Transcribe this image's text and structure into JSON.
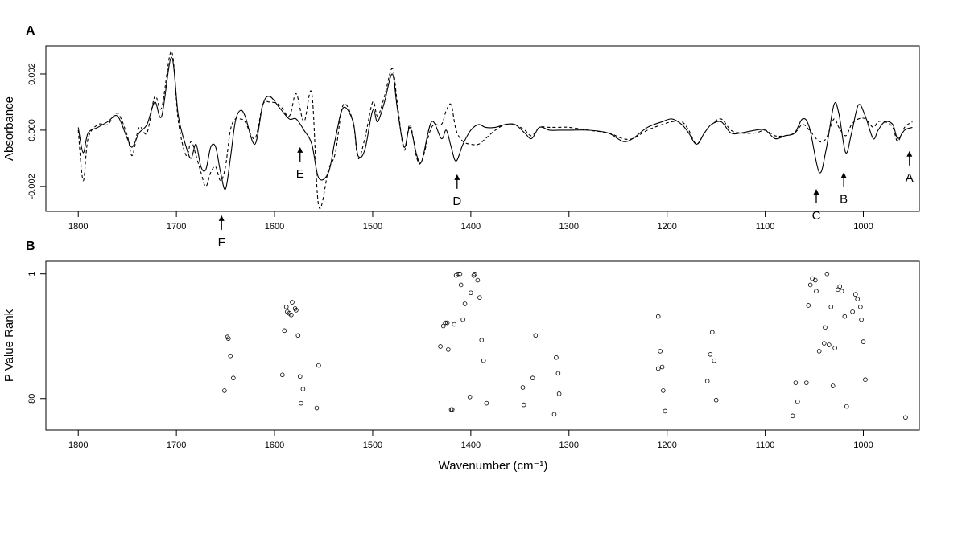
{
  "chart_data": [
    {
      "type": "line",
      "panel_label": "A",
      "ylabel": "Absorbance",
      "xlim": [
        1833,
        943
      ],
      "ylim": [
        -0.00289,
        0.003
      ],
      "xticks": [
        1800,
        1700,
        1600,
        1500,
        1400,
        1300,
        1200,
        1100,
        1000
      ],
      "yticks": [
        -0.002,
        {
          "value": 0,
          "label": "0.000"
        },
        0.002
      ],
      "x": [
        1800,
        1795,
        1790,
        1780,
        1770,
        1760,
        1750,
        1745,
        1738,
        1730,
        1722,
        1715,
        1705,
        1698,
        1690,
        1685,
        1680,
        1675,
        1670,
        1665,
        1660,
        1655,
        1650,
        1645,
        1640,
        1635,
        1630,
        1620,
        1612,
        1605,
        1595,
        1585,
        1578,
        1570,
        1562,
        1555,
        1545,
        1538,
        1530,
        1520,
        1515,
        1508,
        1500,
        1495,
        1488,
        1480,
        1475,
        1468,
        1462,
        1455,
        1450,
        1440,
        1430,
        1425,
        1420,
        1415,
        1408,
        1400,
        1392,
        1385,
        1375,
        1365,
        1355,
        1345,
        1338,
        1330,
        1320,
        1310,
        1300,
        1280,
        1260,
        1245,
        1235,
        1220,
        1205,
        1195,
        1185,
        1178,
        1170,
        1162,
        1155,
        1145,
        1135,
        1125,
        1110,
        1100,
        1090,
        1080,
        1070,
        1062,
        1055,
        1045,
        1038,
        1030,
        1025,
        1018,
        1012,
        1005,
        998,
        990,
        985,
        978,
        970,
        965,
        958,
        950
      ],
      "series": [
        {
          "color": "#000000",
          "dash": "solid",
          "values": [
            0.0001,
            -0.0008,
            -0.0001,
            0.0001,
            0.0003,
            0.0005,
            -0.0003,
            -0.0006,
            -0.0001,
            0.0002,
            0.001,
            0.0005,
            0.0026,
            0.0005,
            -0.0006,
            -0.001,
            -0.0005,
            -0.0013,
            -0.0014,
            -0.0006,
            -0.0006,
            -0.0015,
            -0.0021,
            -0.001,
            0.0003,
            0.0007,
            0.0005,
            -0.0005,
            0.0009,
            0.0012,
            0.0008,
            0.0004,
            0.0004,
            0,
            -0.0005,
            -0.0017,
            -0.0015,
            -0.0003,
            0.0008,
            0.0003,
            -0.0009,
            -0.0007,
            0.0007,
            0.0003,
            0.001,
            0.002,
            0.0008,
            -0.0006,
            0.0001,
            -0.0009,
            -0.0011,
            0.0003,
            -0.0003,
            0,
            -0.0006,
            -0.0011,
            -0.0005,
            0,
            0.0002,
            0.0001,
            0.0001,
            0.0002,
            0.0002,
            -0.0001,
            -0.0003,
            0.0001,
            0,
            0,
            0,
            0,
            -0.0001,
            -0.0004,
            -0.0003,
            0.0001,
            0.0003,
            0.0004,
            0.0002,
            -0.0001,
            -0.0005,
            -0.0001,
            0.0002,
            0.0003,
            -0.0001,
            -0.0001,
            0,
            0,
            -0.0003,
            -0.0002,
            -0.0001,
            0.0004,
            0.0001,
            -0.0015,
            -0.0007,
            0.0009,
            0.0006,
            -0.0008,
            -0.0001,
            0.0009,
            0.0005,
            -0.0003,
            0,
            0.0003,
            0.0002,
            -0.0003,
            0,
            0.0001
          ]
        },
        {
          "color": "#000000",
          "dash": "dashed",
          "values": [
            0,
            -0.0018,
            -0.0003,
            0.0002,
            0.0002,
            0.0006,
            -0.0002,
            -0.0009,
            0.0001,
            -0.0001,
            0.0012,
            0.0008,
            0.0028,
            0.0003,
            -0.0009,
            -0.0004,
            -0.0009,
            -0.0015,
            -0.002,
            -0.0015,
            -0.0013,
            -0.0018,
            -0.0013,
            0,
            0.0004,
            0.0004,
            0.0003,
            -0.0003,
            0.0009,
            0.001,
            0.0009,
            0.0005,
            0.0013,
            0.0003,
            0.0013,
            -0.0027,
            -0.0014,
            -0.0008,
            0.0009,
            0.0003,
            -0.001,
            -0.0003,
            0.001,
            0.0005,
            0.0012,
            0.0022,
            0.001,
            -0.0007,
            0.0002,
            -0.001,
            -0.0011,
            0.0001,
            0.0002,
            0.0007,
            0.0009,
            0,
            -0.0004,
            -0.0005,
            -0.0005,
            -0.0003,
            0,
            0.0002,
            0.0002,
            0,
            -0.0002,
            0.0001,
            0.0001,
            0.0001,
            0.0001,
            0,
            -0.0001,
            -0.0003,
            -0.0003,
            0,
            0.0002,
            0.0003,
            0.0003,
            0,
            -0.0005,
            -0.0001,
            0.0002,
            0.0004,
            0,
            -0.0001,
            -0.0001,
            0,
            -0.0002,
            -0.0002,
            -0.0001,
            0.0002,
            0,
            -0.0004,
            -0.0003,
            0.0004,
            0.0001,
            -0.0002,
            0.0002,
            0.0004,
            0.0004,
            0.0001,
            0.0003,
            0.0003,
            0.0001,
            -0.0004,
            0.0001,
            0.0003
          ]
        }
      ],
      "annotations": [
        {
          "text": "A",
          "x": 953,
          "y": -0.00074
        },
        {
          "text": "B",
          "x": 1020,
          "y": -0.0015
        },
        {
          "text": "C",
          "x": 1048,
          "y": -0.00209
        },
        {
          "text": "D",
          "x": 1414,
          "y": -0.00157
        },
        {
          "text": "E",
          "x": 1574,
          "y": -0.0006
        },
        {
          "text": "F",
          "x": 1654,
          "y": -0.00303
        }
      ]
    },
    {
      "type": "scatter",
      "panel_label": "B",
      "ylabel": "P Value Rank",
      "xlabel": "Wavenumber (cm⁻¹)",
      "xlim": [
        1833,
        943
      ],
      "ylim": [
        100,
        -7
      ],
      "xticks": [
        1800,
        1700,
        1600,
        1500,
        1400,
        1300,
        1200,
        1100,
        1000
      ],
      "yticks": [
        1,
        80
      ],
      "x": [
        1651,
        1648,
        1647,
        1645,
        1642,
        1592,
        1590,
        1588,
        1587,
        1585,
        1583,
        1582,
        1579,
        1578,
        1576,
        1574,
        1573,
        1571,
        1557,
        1555,
        1431,
        1428,
        1426,
        1424,
        1423,
        1420,
        1419,
        1417,
        1415,
        1413,
        1411,
        1410,
        1408,
        1406,
        1401,
        1400,
        1397,
        1396,
        1393,
        1391,
        1389,
        1387,
        1384,
        1347,
        1346,
        1337,
        1334,
        1315,
        1313,
        1311,
        1310,
        1209,
        1209,
        1207,
        1205,
        1204,
        1202,
        1159,
        1156,
        1154,
        1152,
        1150,
        1072,
        1069,
        1067,
        1058,
        1056,
        1054,
        1052,
        1049,
        1048,
        1045,
        1040,
        1039,
        1037,
        1035,
        1033,
        1031,
        1029,
        1026,
        1024,
        1022,
        1019,
        1017,
        1011,
        1008,
        1006,
        1003,
        1002,
        1000,
        998,
        957
      ],
      "y": [
        75,
        41,
        42,
        53,
        67,
        65,
        37,
        22,
        25,
        26,
        27,
        19,
        23,
        24,
        40,
        66,
        83,
        74,
        86,
        59,
        47,
        34,
        32,
        32,
        49,
        87,
        87,
        33,
        2,
        1,
        1,
        8,
        30,
        20,
        79,
        13,
        2,
        1,
        5,
        16,
        43,
        56,
        83,
        73,
        84,
        67,
        40,
        90,
        54,
        64,
        77,
        28,
        61,
        50,
        60,
        75,
        88,
        69,
        52,
        38,
        56,
        81,
        91,
        70,
        82,
        70,
        21,
        8,
        4,
        5,
        12,
        50,
        45,
        35,
        1,
        46,
        22,
        72,
        48,
        11,
        9,
        12,
        28,
        85,
        25,
        14,
        17,
        22,
        30,
        44,
        68,
        92
      ],
      "color": "#000000"
    }
  ]
}
